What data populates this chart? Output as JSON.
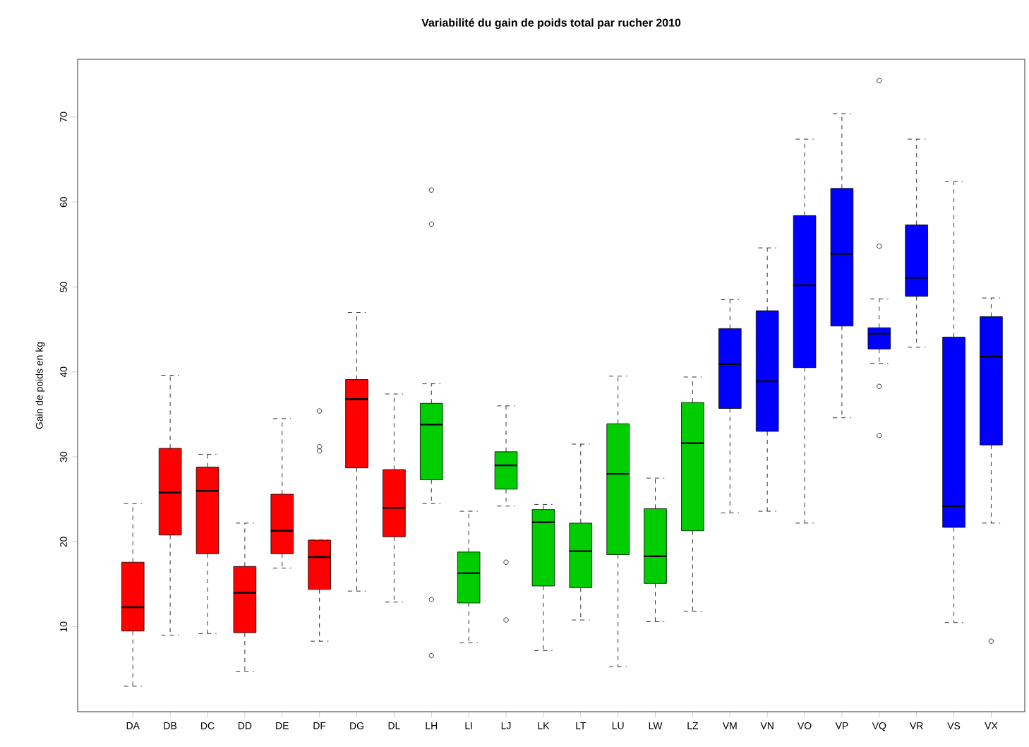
{
  "chart_data": {
    "type": "box",
    "title": "Variabilité du gain de poids total par rucher 2010",
    "ylabel": "Gain de poids en kg",
    "categories": [
      "DA",
      "DB",
      "DC",
      "DD",
      "DE",
      "DF",
      "DG",
      "DL",
      "LH",
      "LI",
      "LJ",
      "LK",
      "LT",
      "LU",
      "LW",
      "LZ",
      "VM",
      "VN",
      "VO",
      "VP",
      "VQ",
      "VR",
      "VS",
      "VX"
    ],
    "colors": [
      "#ff0000",
      "#ff0000",
      "#ff0000",
      "#ff0000",
      "#ff0000",
      "#ff0000",
      "#ff0000",
      "#ff0000",
      "#00cd00",
      "#00cd00",
      "#00cd00",
      "#00cd00",
      "#00cd00",
      "#00cd00",
      "#00cd00",
      "#00cd00",
      "#0000ff",
      "#0000ff",
      "#0000ff",
      "#0000ff",
      "#0000ff",
      "#0000ff",
      "#0000ff",
      "#0000ff"
    ],
    "boxes": [
      {
        "low": 3,
        "q1": 9.5,
        "median": 12.3,
        "q3": 17.6,
        "high": 24.5
      },
      {
        "low": 9,
        "q1": 20.8,
        "median": 25.8,
        "q3": 31,
        "high": 39.6
      },
      {
        "low": 9.2,
        "q1": 18.6,
        "median": 26,
        "q3": 28.8,
        "high": 30.3
      },
      {
        "low": 4.7,
        "q1": 9.3,
        "median": 14,
        "q3": 17.1,
        "high": 22.2
      },
      {
        "low": 16.9,
        "q1": 18.6,
        "median": 21.3,
        "q3": 25.6,
        "high": 34.5
      },
      {
        "low": 8.3,
        "q1": 14.4,
        "median": 18.2,
        "q3": 20.2,
        "high": 20.2,
        "outliers": [
          30.7,
          31.2,
          35.4
        ]
      },
      {
        "low": 14.2,
        "q1": 28.7,
        "median": 36.8,
        "q3": 39.1,
        "high": 47
      },
      {
        "low": 12.9,
        "q1": 20.6,
        "median": 24,
        "q3": 28.5,
        "high": 37.4
      },
      {
        "low": 24.5,
        "q1": 27.3,
        "median": 33.8,
        "q3": 36.3,
        "high": 38.6,
        "outliers": [
          61.4,
          57.4,
          13.2,
          6.6
        ]
      },
      {
        "low": 8.1,
        "q1": 12.8,
        "median": 16.3,
        "q3": 18.8,
        "high": 23.6
      },
      {
        "low": 24.2,
        "q1": 26.2,
        "median": 29,
        "q3": 30.6,
        "high": 36,
        "outliers": [
          17.6,
          10.8
        ]
      },
      {
        "low": 7.2,
        "q1": 14.8,
        "median": 22.3,
        "q3": 23.8,
        "high": 24.4
      },
      {
        "low": 10.8,
        "q1": 14.6,
        "median": 18.9,
        "q3": 22.2,
        "high": 31.5
      },
      {
        "low": 5.3,
        "q1": 18.5,
        "median": 28,
        "q3": 33.9,
        "high": 39.5
      },
      {
        "low": 10.6,
        "q1": 15.1,
        "median": 18.3,
        "q3": 23.9,
        "high": 27.5
      },
      {
        "low": 11.8,
        "q1": 21.3,
        "median": 31.6,
        "q3": 36.4,
        "high": 39.4
      },
      {
        "low": 23.4,
        "q1": 35.7,
        "median": 40.9,
        "q3": 45.1,
        "high": 48.5
      },
      {
        "low": 23.6,
        "q1": 33,
        "median": 38.9,
        "q3": 47.2,
        "high": 54.6
      },
      {
        "low": 22.2,
        "q1": 40.5,
        "median": 50.2,
        "q3": 58.4,
        "high": 67.4
      },
      {
        "low": 34.6,
        "q1": 45.4,
        "median": 53.9,
        "q3": 61.6,
        "high": 70.4
      },
      {
        "low": 41,
        "q1": 42.7,
        "median": 44.5,
        "q3": 45.2,
        "high": 48.6,
        "outliers": [
          74.3,
          54.8,
          38.3,
          32.5
        ]
      },
      {
        "low": 42.9,
        "q1": 48.9,
        "median": 51.1,
        "q3": 57.3,
        "high": 67.4
      },
      {
        "low": 10.5,
        "q1": 21.7,
        "median": 24.2,
        "q3": 44.1,
        "high": 62.4
      },
      {
        "low": 22.2,
        "q1": 31.4,
        "median": 41.8,
        "q3": 46.5,
        "high": 48.7,
        "outliers": [
          8.3
        ]
      }
    ],
    "ylim": [
      0,
      76.8
    ],
    "yticks": [
      10,
      20,
      30,
      40,
      50,
      60,
      70
    ]
  }
}
